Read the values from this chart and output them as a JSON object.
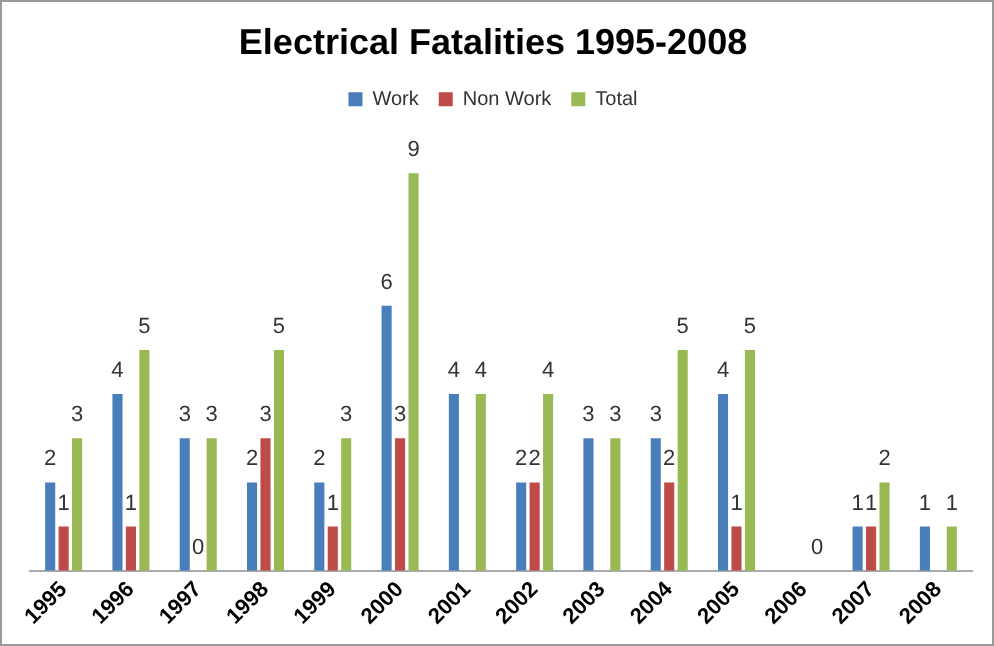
{
  "chart_data": {
    "type": "bar",
    "title": "Electrical Fatalities 1995-2008",
    "categories": [
      "1995",
      "1996",
      "1997",
      "1998",
      "1999",
      "2000",
      "2001",
      "2002",
      "2003",
      "2004",
      "2005",
      "2006",
      "2007",
      "2008"
    ],
    "series": [
      {
        "name": "Work",
        "color": "#4a7ebb",
        "values": [
          2,
          4,
          3,
          2,
          2,
          6,
          4,
          2,
          3,
          3,
          4,
          null,
          1,
          1
        ]
      },
      {
        "name": "Non Work",
        "color": "#be4b48",
        "values": [
          1,
          1,
          0,
          3,
          1,
          3,
          null,
          2,
          null,
          2,
          1,
          null,
          1,
          null
        ]
      },
      {
        "name": "Total",
        "color": "#98b954",
        "values": [
          3,
          5,
          3,
          5,
          3,
          9,
          4,
          4,
          3,
          5,
          5,
          0,
          2,
          1
        ]
      }
    ],
    "relative": false,
    "data_labels": true,
    "legend": "top",
    "grid": false
  }
}
